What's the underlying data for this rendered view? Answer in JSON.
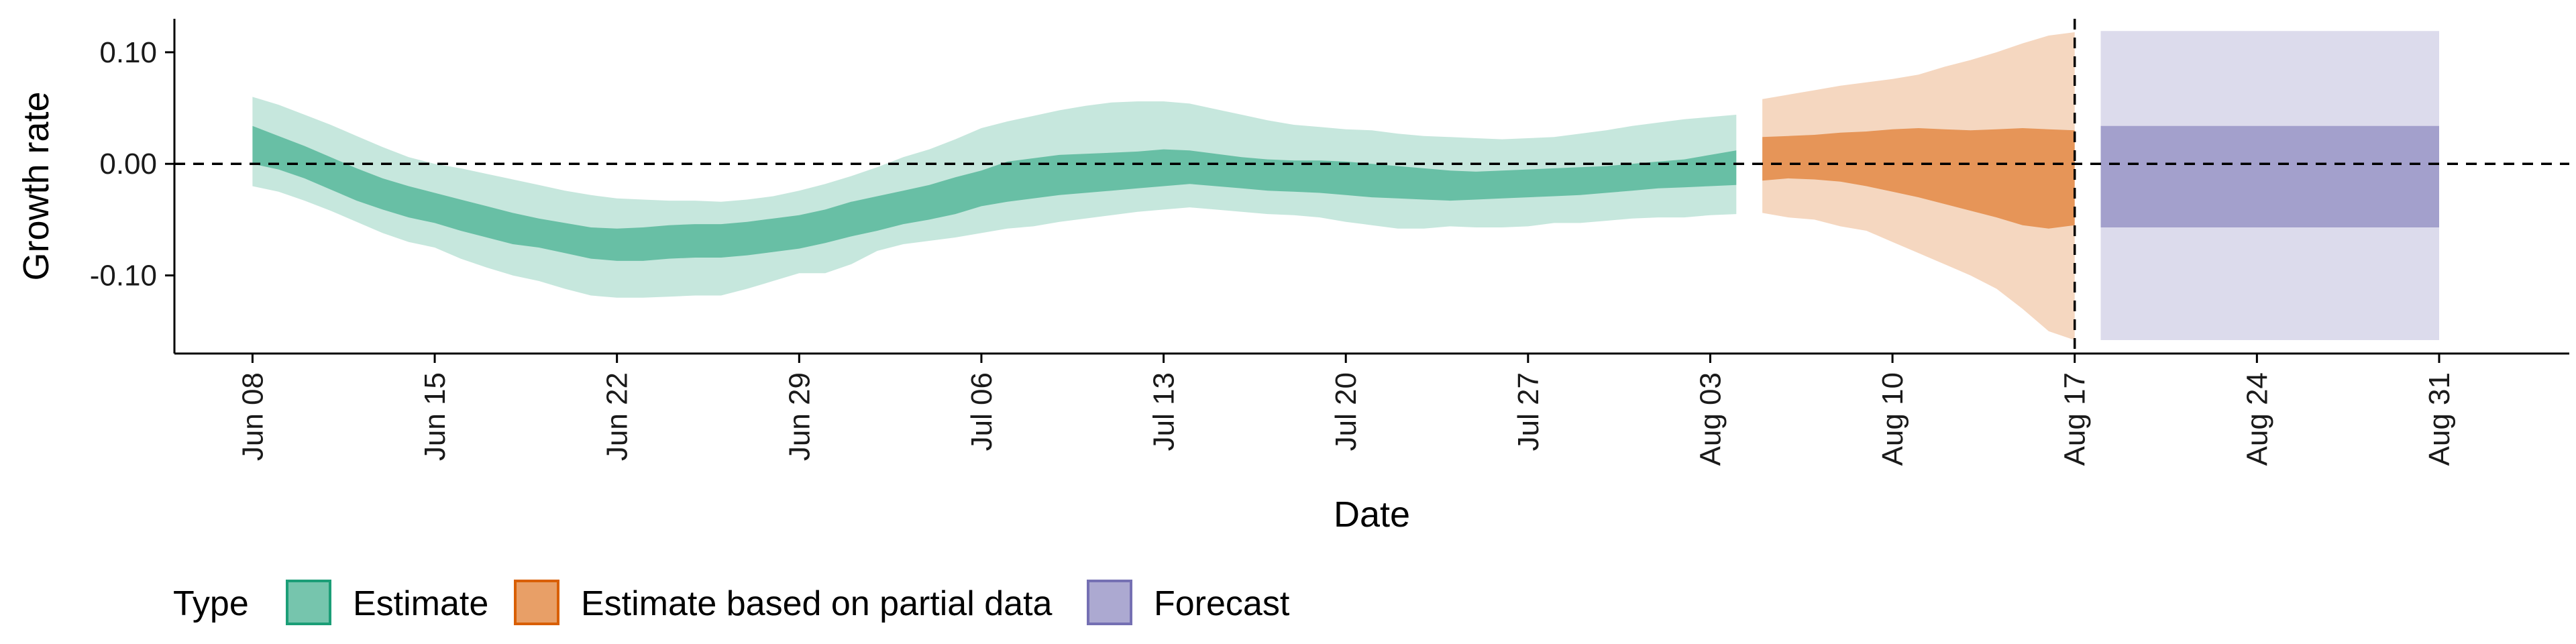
{
  "chart_data": {
    "type": "area",
    "xlabel": "Date",
    "ylabel": "Growth rate",
    "ylim": [
      -0.17,
      0.13
    ],
    "y_ticks": [
      {
        "value": 0.1,
        "label": "0.10"
      },
      {
        "value": 0.0,
        "label": "0.00"
      },
      {
        "value": -0.1,
        "label": "-0.10"
      }
    ],
    "x_start": "2021-06-05",
    "x_end": "2021-09-05",
    "x_ticks": [
      {
        "date": "2021-06-08",
        "label": "Jun 08"
      },
      {
        "date": "2021-06-15",
        "label": "Jun 15"
      },
      {
        "date": "2021-06-22",
        "label": "Jun 22"
      },
      {
        "date": "2021-06-29",
        "label": "Jun 29"
      },
      {
        "date": "2021-07-06",
        "label": "Jul 06"
      },
      {
        "date": "2021-07-13",
        "label": "Jul 13"
      },
      {
        "date": "2021-07-20",
        "label": "Jul 20"
      },
      {
        "date": "2021-07-27",
        "label": "Jul 27"
      },
      {
        "date": "2021-08-03",
        "label": "Aug 03"
      },
      {
        "date": "2021-08-10",
        "label": "Aug 10"
      },
      {
        "date": "2021-08-17",
        "label": "Aug 17"
      },
      {
        "date": "2021-08-24",
        "label": "Aug 24"
      },
      {
        "date": "2021-08-31",
        "label": "Aug 31"
      }
    ],
    "reference_line_y": 0,
    "vertical_line_date": "2021-08-17",
    "legend": {
      "title": "Type",
      "position": "bottom",
      "entries": [
        {
          "name": "Estimate",
          "color": "#1b9e77"
        },
        {
          "name": "Estimate based on partial data",
          "color": "#d95f02"
        },
        {
          "name": "Forecast",
          "color": "#7570b3"
        }
      ]
    },
    "series": [
      {
        "name": "Estimate",
        "color": "#1b9e77",
        "x": [
          "2021-06-08",
          "2021-06-09",
          "2021-06-10",
          "2021-06-11",
          "2021-06-12",
          "2021-06-13",
          "2021-06-14",
          "2021-06-15",
          "2021-06-16",
          "2021-06-17",
          "2021-06-18",
          "2021-06-19",
          "2021-06-20",
          "2021-06-21",
          "2021-06-22",
          "2021-06-23",
          "2021-06-24",
          "2021-06-25",
          "2021-06-26",
          "2021-06-27",
          "2021-06-28",
          "2021-06-29",
          "2021-06-30",
          "2021-07-01",
          "2021-07-02",
          "2021-07-03",
          "2021-07-04",
          "2021-07-05",
          "2021-07-06",
          "2021-07-07",
          "2021-07-08",
          "2021-07-09",
          "2021-07-10",
          "2021-07-11",
          "2021-07-12",
          "2021-07-13",
          "2021-07-14",
          "2021-07-15",
          "2021-07-16",
          "2021-07-17",
          "2021-07-18",
          "2021-07-19",
          "2021-07-20",
          "2021-07-21",
          "2021-07-22",
          "2021-07-23",
          "2021-07-24",
          "2021-07-25",
          "2021-07-26",
          "2021-07-27",
          "2021-07-28",
          "2021-07-29",
          "2021-07-30",
          "2021-07-31",
          "2021-08-01",
          "2021-08-02",
          "2021-08-03",
          "2021-08-04"
        ],
        "lower_90": [
          -0.02,
          -0.025,
          -0.033,
          -0.042,
          -0.052,
          -0.062,
          -0.07,
          -0.075,
          -0.085,
          -0.093,
          -0.1,
          -0.105,
          -0.112,
          -0.118,
          -0.12,
          -0.12,
          -0.119,
          -0.118,
          -0.118,
          -0.112,
          -0.105,
          -0.098,
          -0.098,
          -0.09,
          -0.078,
          -0.072,
          -0.069,
          -0.066,
          -0.062,
          -0.058,
          -0.056,
          -0.052,
          -0.049,
          -0.046,
          -0.043,
          -0.041,
          -0.039,
          -0.041,
          -0.043,
          -0.045,
          -0.046,
          -0.048,
          -0.052,
          -0.055,
          -0.058,
          -0.058,
          -0.056,
          -0.057,
          -0.057,
          -0.056,
          -0.053,
          -0.053,
          -0.051,
          -0.049,
          -0.048,
          -0.048,
          -0.046,
          -0.045
        ],
        "lower_50": [
          0.0,
          -0.005,
          -0.013,
          -0.023,
          -0.033,
          -0.041,
          -0.048,
          -0.053,
          -0.06,
          -0.066,
          -0.072,
          -0.075,
          -0.08,
          -0.085,
          -0.087,
          -0.087,
          -0.085,
          -0.084,
          -0.084,
          -0.082,
          -0.079,
          -0.076,
          -0.071,
          -0.065,
          -0.06,
          -0.054,
          -0.05,
          -0.045,
          -0.038,
          -0.034,
          -0.031,
          -0.028,
          -0.026,
          -0.024,
          -0.022,
          -0.02,
          -0.018,
          -0.02,
          -0.022,
          -0.024,
          -0.025,
          -0.026,
          -0.028,
          -0.03,
          -0.031,
          -0.032,
          -0.033,
          -0.032,
          -0.031,
          -0.03,
          -0.029,
          -0.028,
          -0.026,
          -0.024,
          -0.022,
          -0.021,
          -0.02,
          -0.019
        ],
        "upper_50": [
          0.034,
          0.025,
          0.016,
          0.006,
          -0.004,
          -0.013,
          -0.02,
          -0.026,
          -0.032,
          -0.038,
          -0.044,
          -0.049,
          -0.053,
          -0.057,
          -0.058,
          -0.057,
          -0.055,
          -0.054,
          -0.054,
          -0.052,
          -0.049,
          -0.046,
          -0.041,
          -0.034,
          -0.029,
          -0.024,
          -0.019,
          -0.012,
          -0.006,
          0.002,
          0.005,
          0.008,
          0.009,
          0.01,
          0.011,
          0.013,
          0.012,
          0.009,
          0.006,
          0.004,
          0.003,
          0.003,
          0.002,
          0.0,
          -0.002,
          -0.004,
          -0.006,
          -0.007,
          -0.006,
          -0.005,
          -0.004,
          -0.003,
          -0.002,
          0.0,
          0.002,
          0.004,
          0.008,
          0.012
        ],
        "upper_90": [
          0.06,
          0.053,
          0.044,
          0.035,
          0.025,
          0.015,
          0.006,
          0.0,
          -0.004,
          -0.009,
          -0.014,
          -0.019,
          -0.024,
          -0.028,
          -0.031,
          -0.032,
          -0.033,
          -0.033,
          -0.034,
          -0.032,
          -0.029,
          -0.024,
          -0.018,
          -0.011,
          -0.003,
          0.006,
          0.013,
          0.022,
          0.032,
          0.038,
          0.043,
          0.048,
          0.052,
          0.055,
          0.056,
          0.056,
          0.054,
          0.049,
          0.044,
          0.039,
          0.035,
          0.033,
          0.031,
          0.03,
          0.027,
          0.025,
          0.024,
          0.023,
          0.022,
          0.023,
          0.024,
          0.027,
          0.03,
          0.034,
          0.037,
          0.04,
          0.042,
          0.044
        ]
      },
      {
        "name": "Estimate based on partial data",
        "color": "#d95f02",
        "x": [
          "2021-08-05",
          "2021-08-06",
          "2021-08-07",
          "2021-08-08",
          "2021-08-09",
          "2021-08-10",
          "2021-08-11",
          "2021-08-12",
          "2021-08-13",
          "2021-08-14",
          "2021-08-15",
          "2021-08-16",
          "2021-08-17"
        ],
        "lower_90": [
          -0.044,
          -0.048,
          -0.05,
          -0.056,
          -0.06,
          -0.07,
          -0.08,
          -0.09,
          -0.1,
          -0.112,
          -0.13,
          -0.15,
          -0.158
        ],
        "lower_50": [
          -0.015,
          -0.013,
          -0.014,
          -0.016,
          -0.02,
          -0.025,
          -0.03,
          -0.036,
          -0.042,
          -0.048,
          -0.055,
          -0.058,
          -0.055
        ],
        "upper_50": [
          0.024,
          0.025,
          0.026,
          0.028,
          0.029,
          0.031,
          0.032,
          0.031,
          0.03,
          0.031,
          0.032,
          0.031,
          0.03
        ],
        "upper_90": [
          0.058,
          0.062,
          0.066,
          0.07,
          0.073,
          0.076,
          0.08,
          0.087,
          0.093,
          0.1,
          0.108,
          0.115,
          0.118
        ]
      },
      {
        "name": "Forecast",
        "color": "#7570b3",
        "x": [
          "2021-08-18",
          "2021-08-31"
        ],
        "lower_90": [
          -0.158,
          -0.158
        ],
        "lower_50": [
          -0.057,
          -0.057
        ],
        "upper_50": [
          0.034,
          0.034
        ],
        "upper_90": [
          0.119,
          0.119
        ]
      }
    ]
  }
}
